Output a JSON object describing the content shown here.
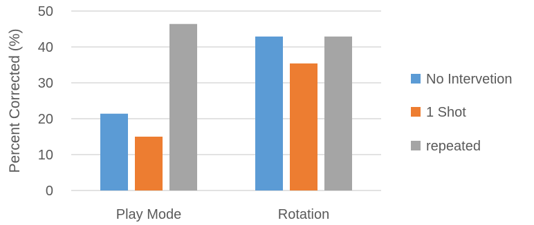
{
  "chart_data": {
    "type": "bar",
    "categories": [
      "Play Mode",
      "Rotation"
    ],
    "series": [
      {
        "name": "No Intervetion",
        "color": "#5B9BD5",
        "values": [
          21.4,
          42.9
        ]
      },
      {
        "name": "1 Shot",
        "color": "#ED7D31",
        "values": [
          15.0,
          35.4
        ]
      },
      {
        "name": "repeated",
        "color": "#A5A5A5",
        "values": [
          46.4,
          42.9
        ]
      }
    ],
    "title": "",
    "xlabel": "",
    "ylabel": "Percent Corrected (%)",
    "ylim": [
      0,
      50
    ],
    "yticks": [
      "0",
      "10",
      "20",
      "30",
      "40",
      "50"
    ],
    "grid": true,
    "legend_position": "right"
  }
}
